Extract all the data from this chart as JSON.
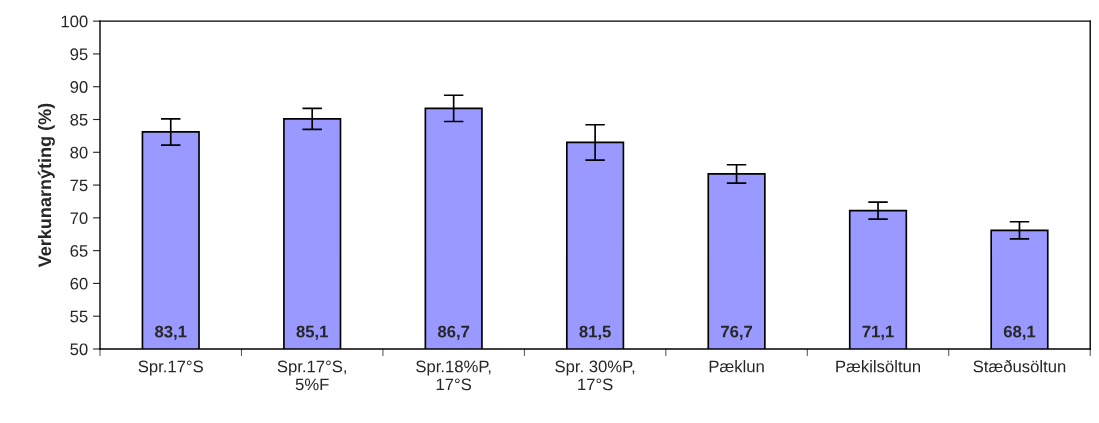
{
  "chart_data": {
    "type": "bar",
    "ylabel": "Verkunarnýting (%)",
    "categories": [
      "Spr.17°S",
      "Spr.17°S,\n5%F",
      "Spr.18%P,\n17°S",
      "Spr. 30%P,\n17°S",
      "Pæklun",
      "Pækilsöltun",
      "Stæðusöltun"
    ],
    "values": [
      83.1,
      85.1,
      86.7,
      81.5,
      76.7,
      71.1,
      68.1
    ],
    "errors": [
      2.0,
      1.6,
      2.0,
      2.7,
      1.4,
      1.3,
      1.3
    ],
    "value_labels": [
      "83,1",
      "85,1",
      "86,7",
      "81,5",
      "76,7",
      "71,1",
      "68,1"
    ],
    "color": "#9999ff",
    "ylim": [
      50,
      100
    ],
    "yticks": [
      50,
      55,
      60,
      65,
      70,
      75,
      80,
      85,
      90,
      95,
      100
    ],
    "grid": false,
    "legend": false
  }
}
